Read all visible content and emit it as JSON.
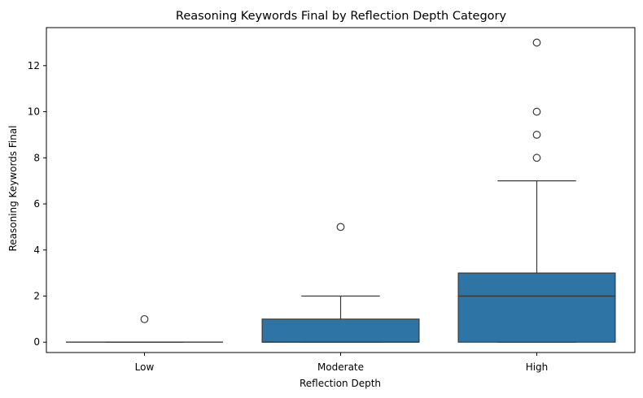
{
  "chart_data": {
    "type": "box",
    "title": "Reasoning Keywords Final by Reflection Depth Category",
    "xlabel": "Reflection Depth",
    "ylabel": "Reasoning Keywords Final",
    "ylim": [
      -0.45,
      13.65
    ],
    "yticks": [
      0,
      2,
      4,
      6,
      8,
      10,
      12
    ],
    "grid": false,
    "legend": "none",
    "box_color": "#2e75a6",
    "line_color": "#3a3a3a",
    "categories": [
      "Low",
      "Moderate",
      "High"
    ],
    "boxes": [
      {
        "category": "Low",
        "q1": 0,
        "median": 0,
        "q3": 0,
        "whisker_low": 0,
        "whisker_high": 0,
        "outliers": [
          1
        ]
      },
      {
        "category": "Moderate",
        "q1": 0,
        "median": 0,
        "q3": 1,
        "whisker_low": 0,
        "whisker_high": 2,
        "outliers": [
          5
        ]
      },
      {
        "category": "High",
        "q1": 0,
        "median": 2,
        "q3": 3,
        "whisker_low": 0,
        "whisker_high": 7,
        "outliers": [
          8,
          9,
          10,
          13
        ]
      }
    ]
  }
}
